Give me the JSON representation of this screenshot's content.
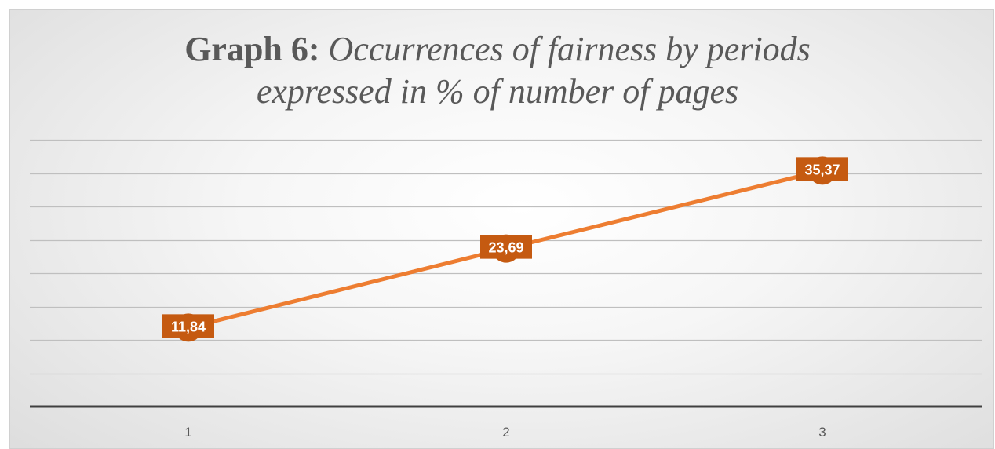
{
  "chart_data": {
    "type": "line",
    "title_bold": "Graph 6:",
    "title_italic_line1": "Occurrences of fairness by periods",
    "title_italic_line2": "expressed in % of number of pages",
    "categories": [
      "1",
      "2",
      "3"
    ],
    "series": [
      {
        "values": [
          11.84,
          23.69,
          35.37
        ],
        "labels": [
          "11,84",
          "23,69",
          "35,37"
        ],
        "color": "#ED7D31",
        "marker_color": "#C55A11"
      }
    ],
    "ylim": [
      0,
      40
    ],
    "grid": true,
    "gridline_color": "#bfbfbf",
    "axis_color": "#404040",
    "legend": "none"
  }
}
